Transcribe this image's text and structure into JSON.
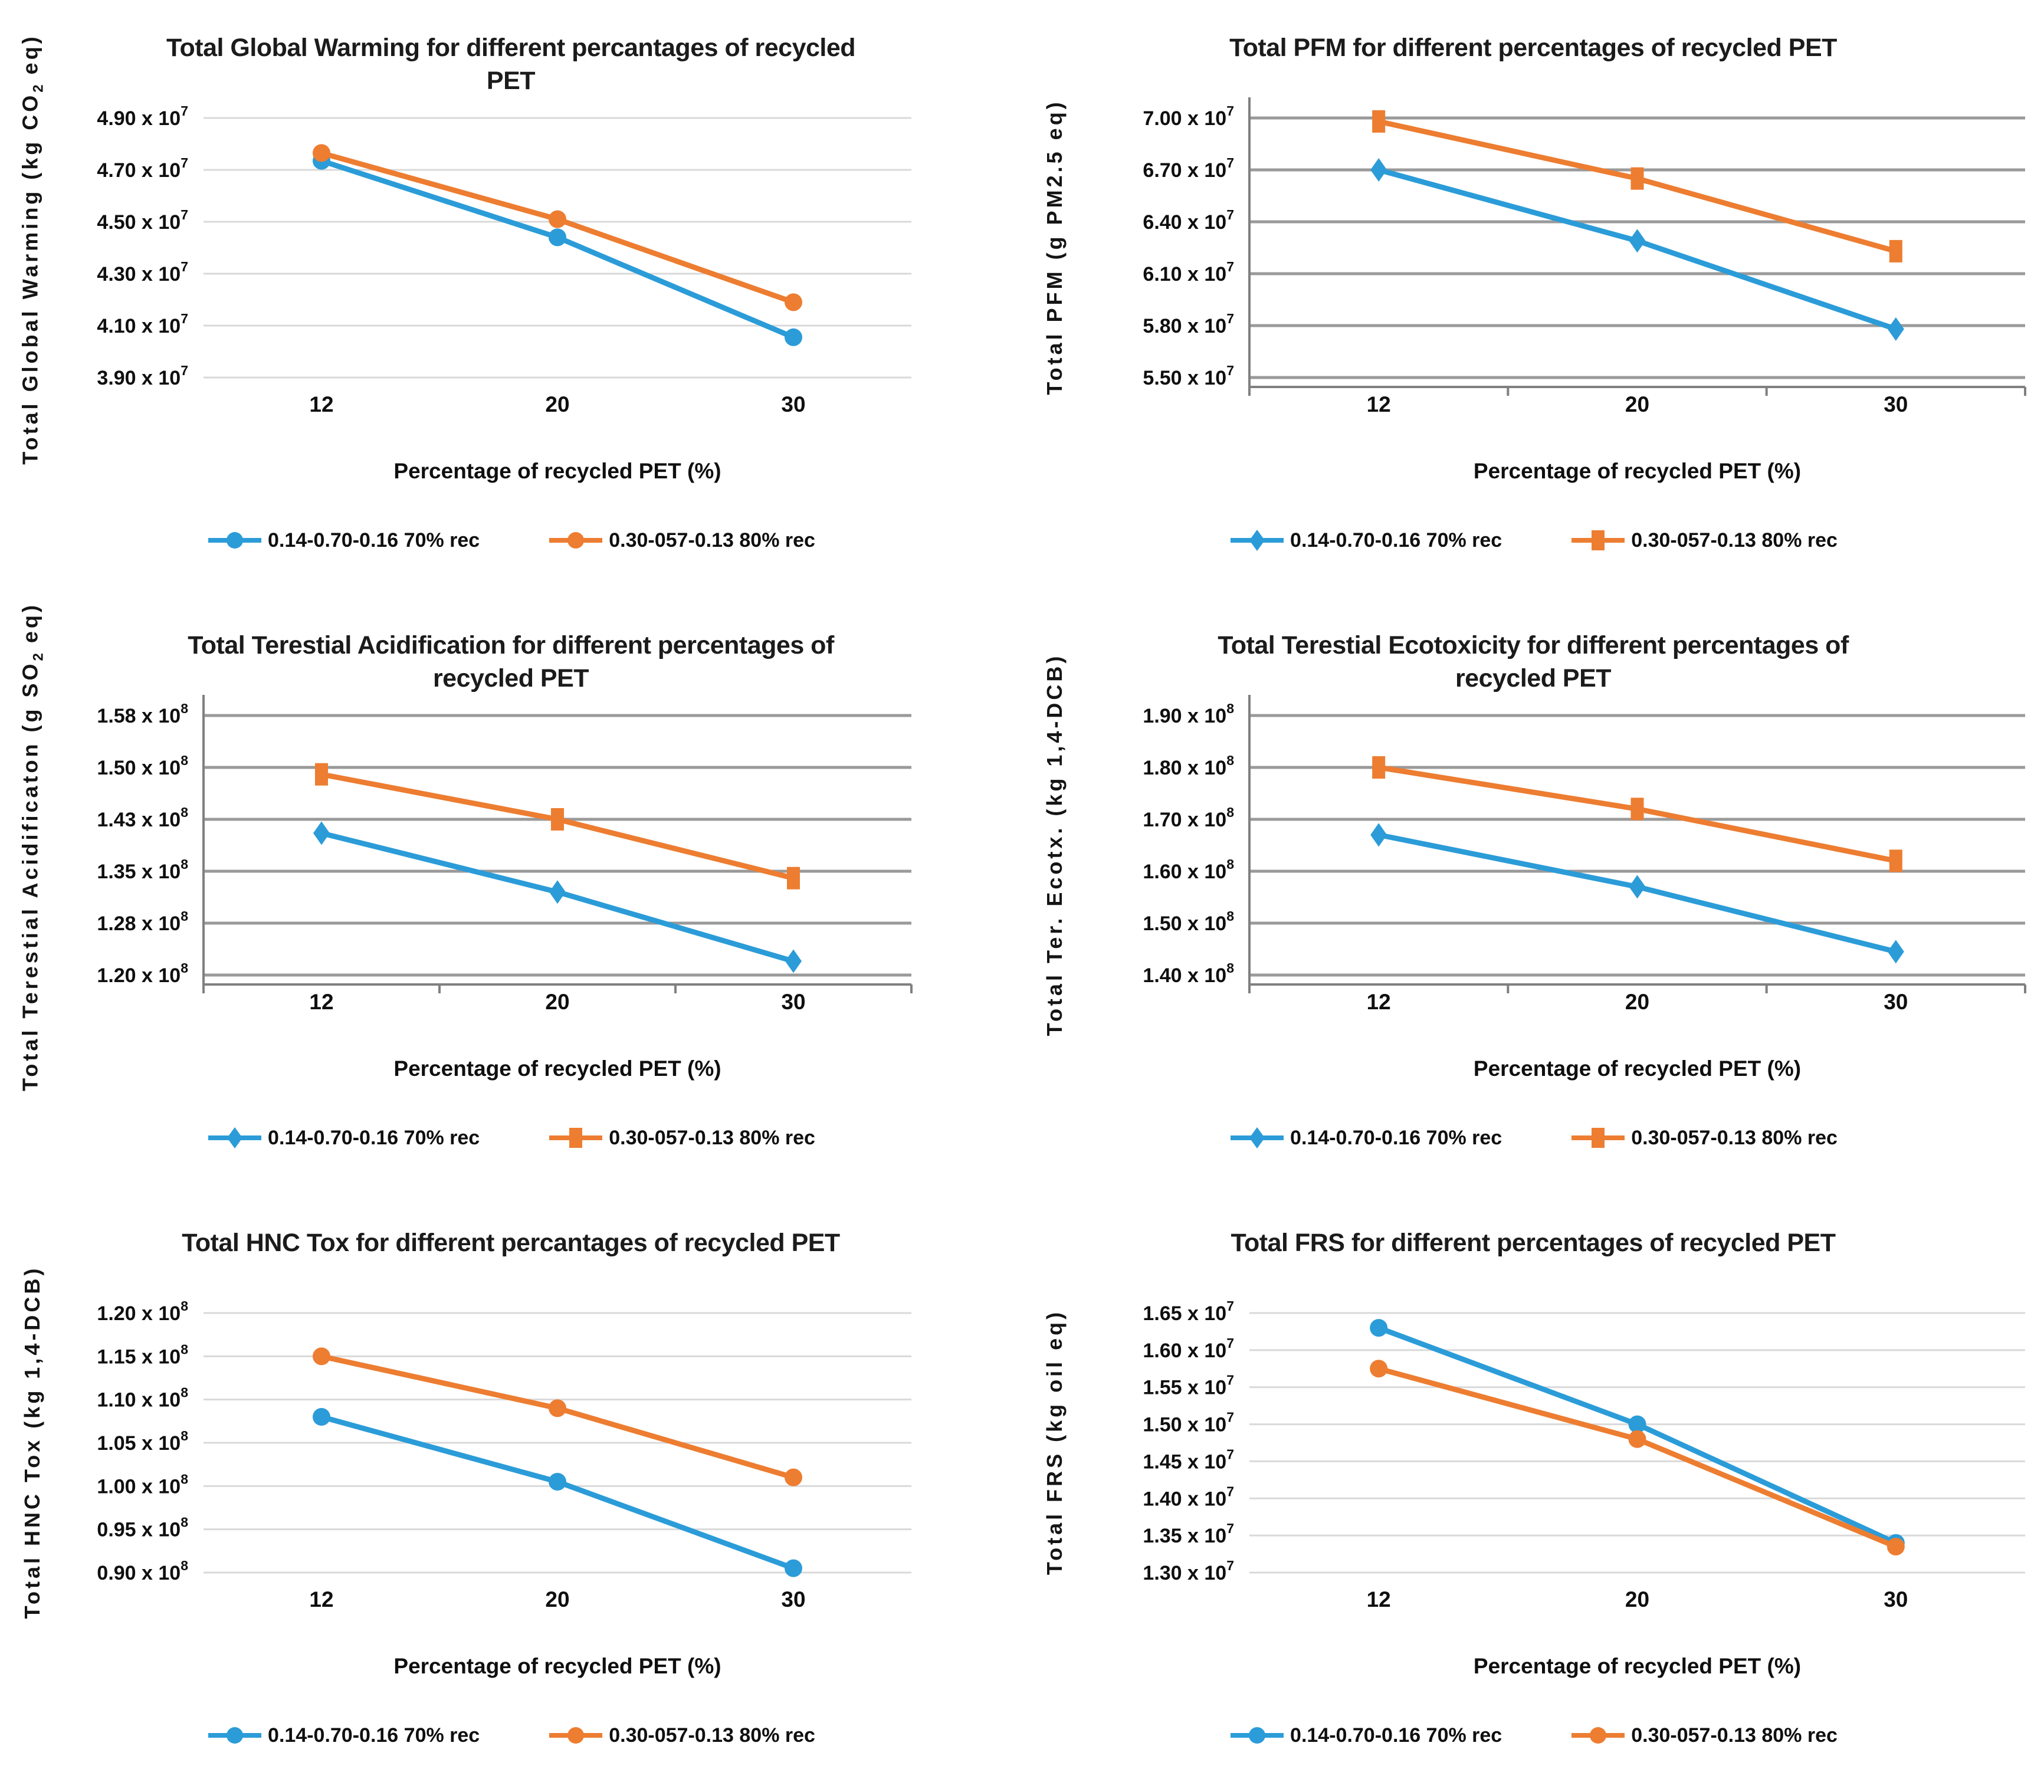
{
  "page_background": "#ffffff",
  "series_colors": {
    "blue": "#2b9cd8",
    "orange": "#ed7d31"
  },
  "chart_data": [
    {
      "type": "line",
      "title_lines": [
        "Total Global Warming for different percantages of recycled",
        "PET"
      ],
      "ylabel_parts": [
        {
          "t": "Total Global Warming (kg CO"
        },
        {
          "t": "2",
          "s": "sub"
        },
        {
          "t": " eq)"
        }
      ],
      "xlabel": "Percentage of recycled PET (%)",
      "categories": [
        "12",
        "20",
        "30"
      ],
      "ylim": [
        39000000,
        49000000
      ],
      "yticks": [
        {
          "v": 49000000,
          "m": "4.90 x 10",
          "e": "7"
        },
        {
          "v": 47000000,
          "m": "4.70 x 10",
          "e": "7"
        },
        {
          "v": 45000000,
          "m": "4.50 x 10",
          "e": "7"
        },
        {
          "v": 43000000,
          "m": "4.30 x 10",
          "e": "7"
        },
        {
          "v": 41000000,
          "m": "4.10 x 10",
          "e": "7"
        },
        {
          "v": 39000000,
          "m": "3.90 x 10",
          "e": "7"
        }
      ],
      "grid": {
        "color": "#d9d9d9",
        "width": 3,
        "axes": false,
        "axis_color": "#808080"
      },
      "legend_position": "bottom",
      "series": [
        {
          "name": "0.14-0.70-0.16 70% rec",
          "color": "#2b9cd8",
          "marker": "circle",
          "values": [
            47350000,
            44400000,
            40550000
          ]
        },
        {
          "name": "0.30-057-0.13 80% rec",
          "color": "#ed7d31",
          "marker": "circle",
          "values": [
            47650000,
            45100000,
            41900000
          ]
        }
      ]
    },
    {
      "type": "line",
      "title_lines": [
        "Total PFM for different percentages of recycled PET"
      ],
      "ylabel_parts": [
        {
          "t": "Total  PFM  (g PM2.5 eq)"
        }
      ],
      "xlabel": "Percentage of recycled PET (%)",
      "categories": [
        "12",
        "20",
        "30"
      ],
      "ylim": [
        55000000,
        70000000
      ],
      "yticks": [
        {
          "v": 70000000,
          "m": "7.00 x 10",
          "e": "7"
        },
        {
          "v": 67000000,
          "m": "6.70 x 10",
          "e": "7"
        },
        {
          "v": 64000000,
          "m": "6.40 x 10",
          "e": "7"
        },
        {
          "v": 61000000,
          "m": "6.10 x 10",
          "e": "7"
        },
        {
          "v": 58000000,
          "m": "5.80 x 10",
          "e": "7"
        },
        {
          "v": 55000000,
          "m": "5.50 x 10",
          "e": "7"
        }
      ],
      "grid": {
        "color": "#9a9a9a",
        "width": 5,
        "axes": true,
        "axis_color": "#808080"
      },
      "legend_position": "bottom",
      "series": [
        {
          "name": "0.14-0.70-0.16 70% rec",
          "color": "#2b9cd8",
          "marker": "diamond",
          "values": [
            67000000,
            62900000,
            57800000
          ]
        },
        {
          "name": "0.30-057-0.13 80% rec",
          "color": "#ed7d31",
          "marker": "square",
          "values": [
            69800000,
            66500000,
            62300000
          ]
        }
      ]
    },
    {
      "type": "line",
      "title_lines": [
        "Total Terestial Acidification for different percentages of",
        "recycled PET"
      ],
      "ylabel_parts": [
        {
          "t": "Total Terestial Acidificaton (g SO"
        },
        {
          "t": "2",
          "s": "sub"
        },
        {
          "t": " eq)"
        }
      ],
      "xlabel": "Percentage of recycled PET (%)",
      "categories": [
        "12",
        "20",
        "30"
      ],
      "ylim": [
        120000000,
        157500000
      ],
      "yticks": [
        {
          "v": 157500000,
          "m": "1.58 x 10",
          "e": "8"
        },
        {
          "v": 150000000,
          "m": "1.50 x 10",
          "e": "8"
        },
        {
          "v": 142500000,
          "m": "1.43 x 10",
          "e": "8"
        },
        {
          "v": 135000000,
          "m": "1.35 x 10",
          "e": "8"
        },
        {
          "v": 127500000,
          "m": "1.28 x 10",
          "e": "8"
        },
        {
          "v": 120000000,
          "m": "1.20 x 10",
          "e": "8"
        }
      ],
      "grid": {
        "color": "#9a9a9a",
        "width": 5,
        "axes": true,
        "axis_color": "#808080"
      },
      "legend_position": "bottom",
      "series": [
        {
          "name": "0.14-0.70-0.16 70% rec",
          "color": "#2b9cd8",
          "marker": "diamond",
          "values": [
            140500000,
            132000000,
            122000000
          ]
        },
        {
          "name": "0.30-057-0.13 80% rec",
          "color": "#ed7d31",
          "marker": "square",
          "values": [
            149000000,
            142500000,
            134000000
          ]
        }
      ]
    },
    {
      "type": "line",
      "title_lines": [
        "Total Terestial Ecotoxicity for different percentages of",
        "recycled PET"
      ],
      "ylabel_parts": [
        {
          "t": "Total Ter. Ecotx. (kg 1,4-DCB)"
        }
      ],
      "xlabel": "Percentage of recycled PET (%)",
      "categories": [
        "12",
        "20",
        "30"
      ],
      "ylim": [
        140000000,
        190000000
      ],
      "yticks": [
        {
          "v": 190000000,
          "m": "1.90 x 10",
          "e": "8"
        },
        {
          "v": 180000000,
          "m": "1.80 x 10",
          "e": "8"
        },
        {
          "v": 170000000,
          "m": "1.70 x 10",
          "e": "8"
        },
        {
          "v": 160000000,
          "m": "1.60 x 10",
          "e": "8"
        },
        {
          "v": 150000000,
          "m": "1.50 x 10",
          "e": "8"
        },
        {
          "v": 140000000,
          "m": "1.40 x 10",
          "e": "8"
        }
      ],
      "grid": {
        "color": "#9a9a9a",
        "width": 5,
        "axes": true,
        "axis_color": "#808080"
      },
      "legend_position": "bottom",
      "series": [
        {
          "name": "0.14-0.70-0.16 70% rec",
          "color": "#2b9cd8",
          "marker": "diamond",
          "values": [
            167000000,
            157000000,
            144500000
          ]
        },
        {
          "name": "0.30-057-0.13 80% rec",
          "color": "#ed7d31",
          "marker": "square",
          "values": [
            180000000,
            172000000,
            162000000
          ]
        }
      ]
    },
    {
      "type": "line",
      "title_lines": [
        "Total HNC Tox for different percantages of recycled PET"
      ],
      "ylabel_parts": [
        {
          "t": "Total  HNC Tox (kg 1,4-DCB)"
        }
      ],
      "xlabel": "Percentage of recycled PET (%)",
      "categories": [
        "12",
        "20",
        "30"
      ],
      "ylim": [
        90000000,
        120000000
      ],
      "yticks": [
        {
          "v": 120000000,
          "m": "1.20 x 10",
          "e": "8"
        },
        {
          "v": 115000000,
          "m": "1.15 x 10",
          "e": "8"
        },
        {
          "v": 110000000,
          "m": "1.10 x 10",
          "e": "8"
        },
        {
          "v": 105000000,
          "m": "1.05 x 10",
          "e": "8"
        },
        {
          "v": 100000000,
          "m": "1.00 x 10",
          "e": "8"
        },
        {
          "v": 95000000,
          "m": "0.95 x 10",
          "e": "8"
        },
        {
          "v": 90000000,
          "m": "0.90 x 10",
          "e": "8"
        }
      ],
      "grid": {
        "color": "#d9d9d9",
        "width": 3,
        "axes": false,
        "axis_color": "#808080"
      },
      "legend_position": "bottom",
      "series": [
        {
          "name": "0.14-0.70-0.16 70% rec",
          "color": "#2b9cd8",
          "marker": "circle",
          "values": [
            108000000,
            100500000,
            90500000
          ]
        },
        {
          "name": "0.30-057-0.13 80% rec",
          "color": "#ed7d31",
          "marker": "circle",
          "values": [
            115000000,
            109000000,
            101000000
          ]
        }
      ]
    },
    {
      "type": "line",
      "title_lines": [
        "Total FRS for different percentages of recycled PET"
      ],
      "ylabel_parts": [
        {
          "t": "Total FRS (kg oil eq)"
        }
      ],
      "xlabel": "Percentage of recycled PET (%)",
      "categories": [
        "12",
        "20",
        "30"
      ],
      "ylim": [
        13000000,
        16500000
      ],
      "yticks": [
        {
          "v": 16500000,
          "m": "1.65 x 10",
          "e": "7"
        },
        {
          "v": 16000000,
          "m": "1.60 x 10",
          "e": "7"
        },
        {
          "v": 15500000,
          "m": "1.55 x 10",
          "e": "7"
        },
        {
          "v": 15000000,
          "m": "1.50 x 10",
          "e": "7"
        },
        {
          "v": 14500000,
          "m": "1.45 x 10",
          "e": "7"
        },
        {
          "v": 14000000,
          "m": "1.40 x 10",
          "e": "7"
        },
        {
          "v": 13500000,
          "m": "1.35 x 10",
          "e": "7"
        },
        {
          "v": 13000000,
          "m": "1.30 x 10",
          "e": "7"
        }
      ],
      "grid": {
        "color": "#d9d9d9",
        "width": 3,
        "axes": false,
        "axis_color": "#808080"
      },
      "legend_position": "bottom",
      "series": [
        {
          "name": "0.14-0.70-0.16 70% rec",
          "color": "#2b9cd8",
          "marker": "circle",
          "values": [
            16300000,
            15000000,
            13400000
          ]
        },
        {
          "name": "0.30-057-0.13 80% rec",
          "color": "#ed7d31",
          "marker": "circle",
          "values": [
            15750000,
            14800000,
            13350000
          ]
        }
      ]
    }
  ]
}
